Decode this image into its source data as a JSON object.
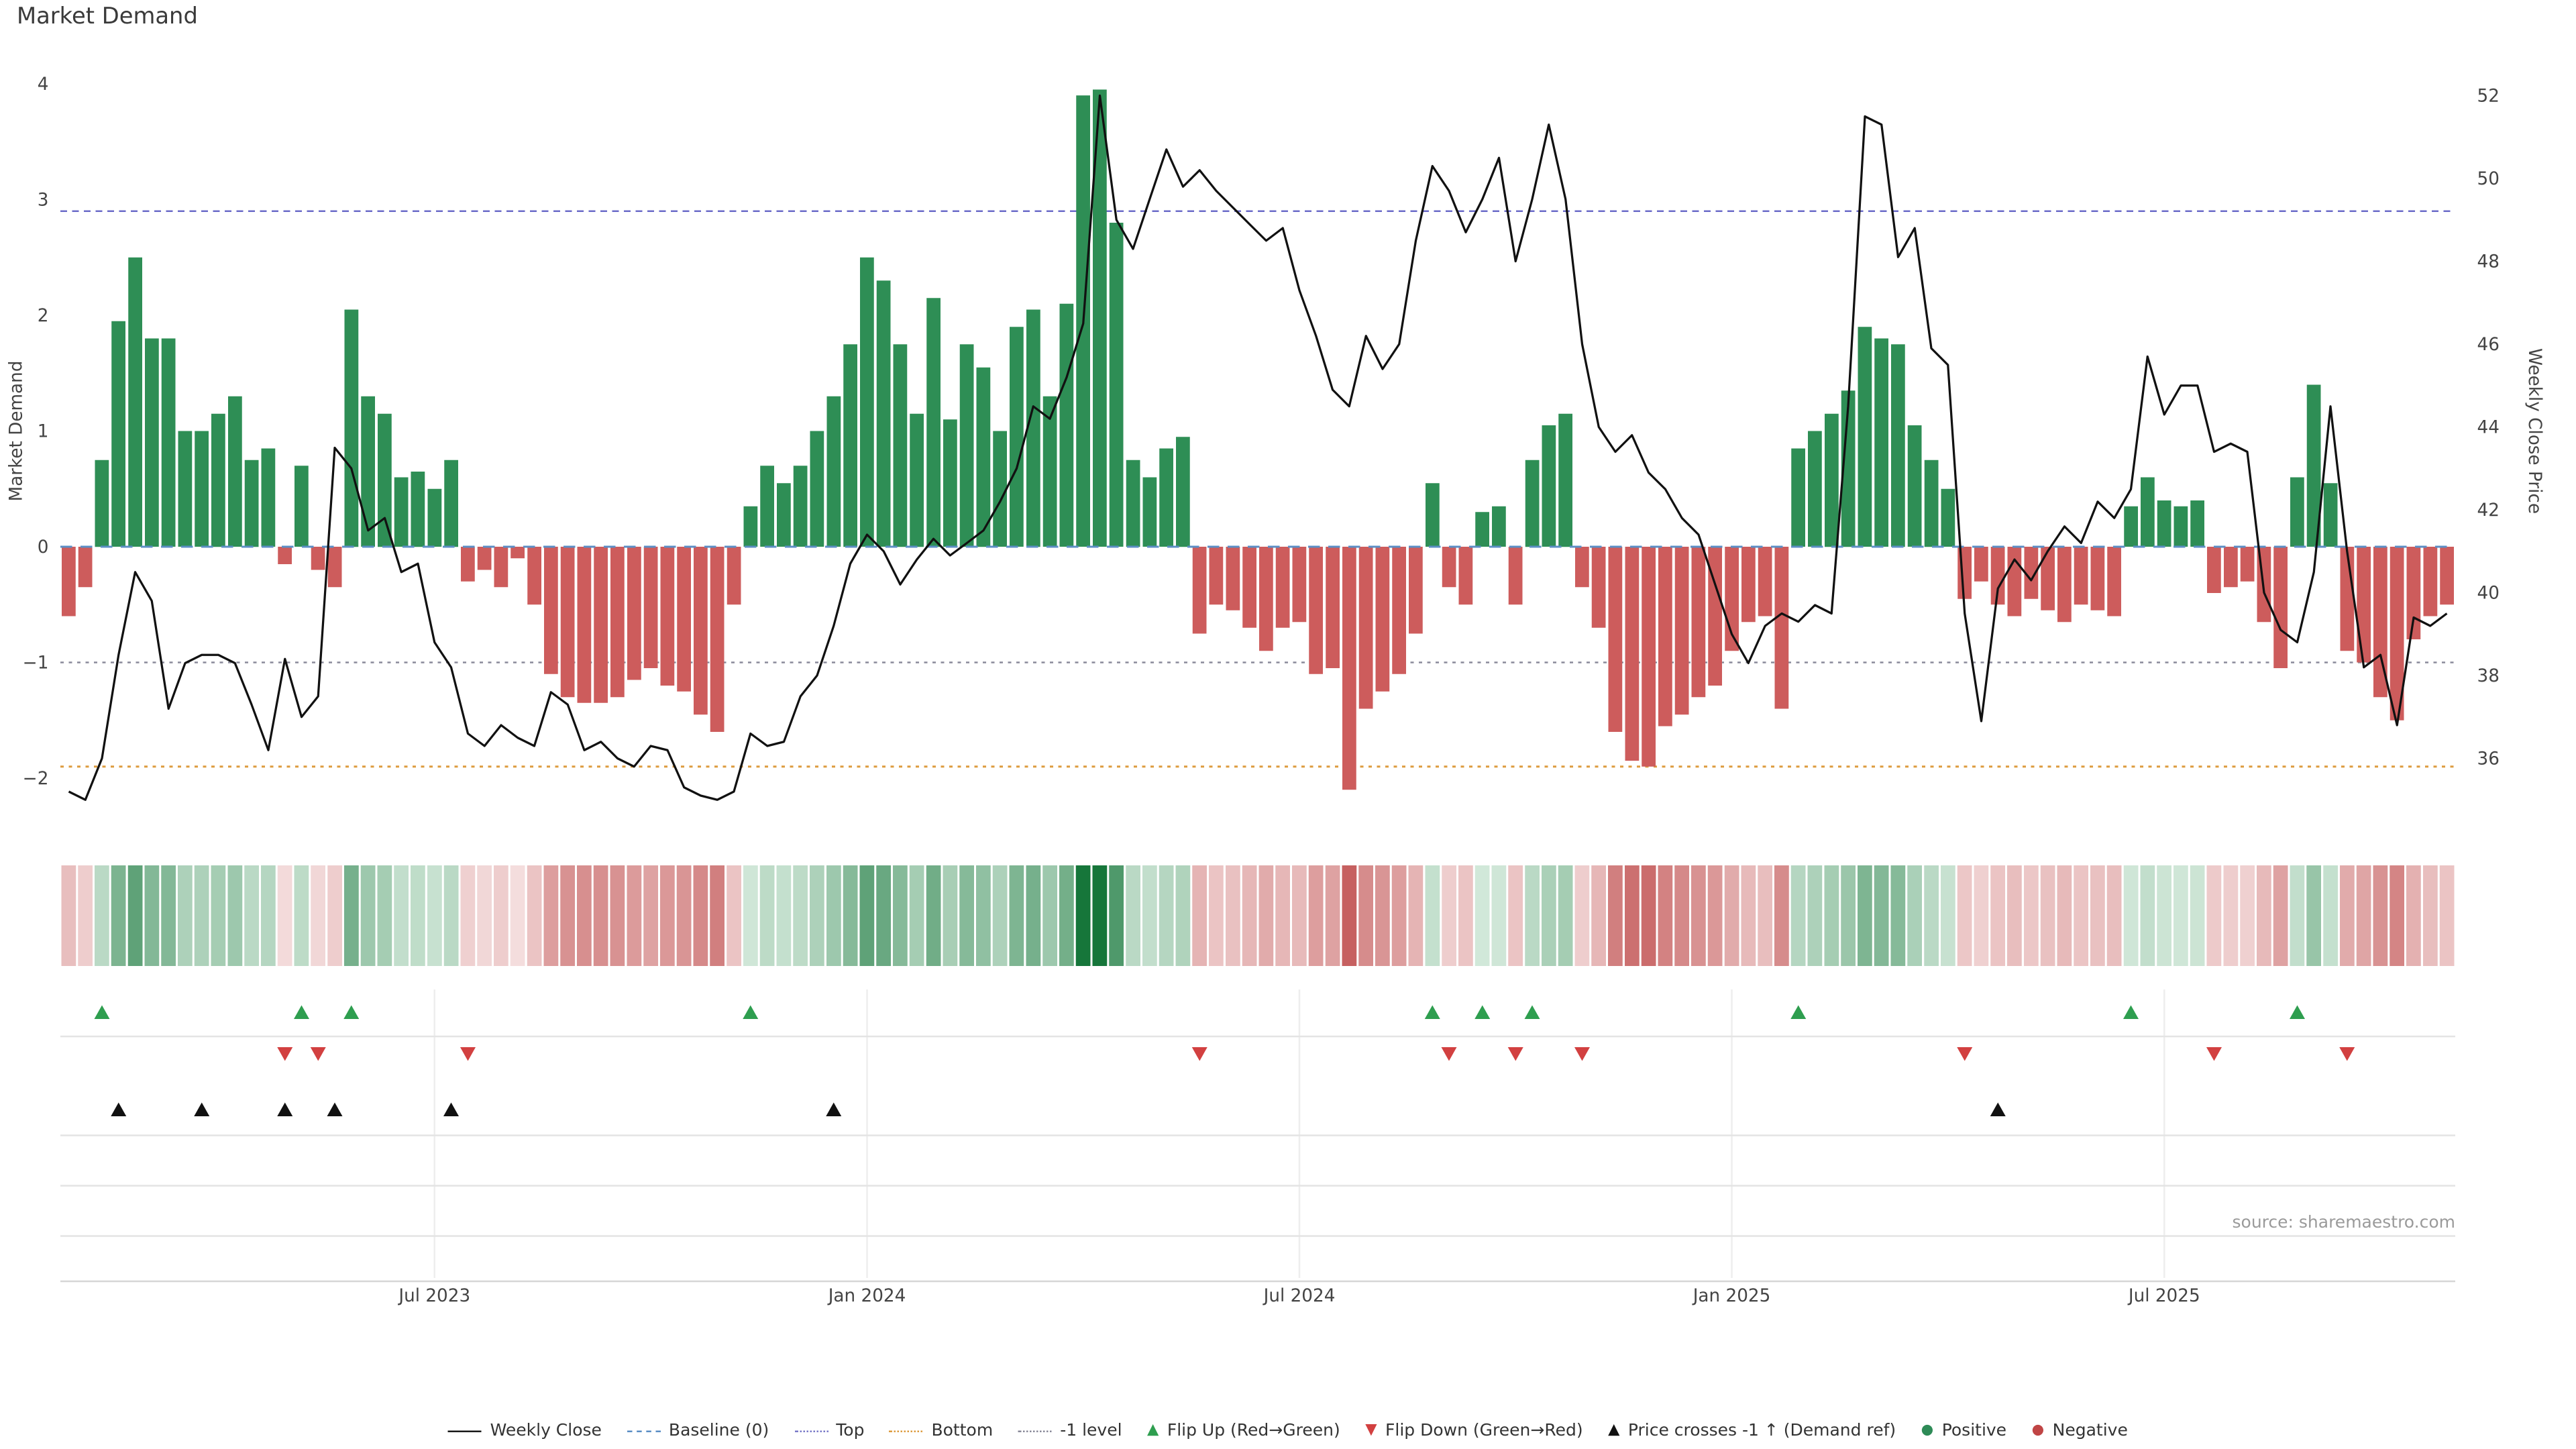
{
  "page": {
    "title": "Market Demand",
    "source": "source: sharemaestro.com"
  },
  "axes": {
    "left_label": "Market Demand",
    "right_label": "Weekly Close Price"
  },
  "colors": {
    "positive": "#2e8e55",
    "negative": "#cd5c5c",
    "price_line": "#111111",
    "baseline_line": "#5b8ec4",
    "top_line": "#6b6bc8",
    "bottom_line": "#dd9c3f",
    "minus1_line": "#8a8a9a",
    "flip_up": "#2e9e4f",
    "flip_down": "#d24040",
    "cross": "#111111",
    "grid": "#e4e4e4",
    "tick_text": "#444444"
  },
  "legend": {
    "items": [
      {
        "label": "Weekly Close",
        "swatch": "line",
        "color": "#1a1a1a"
      },
      {
        "label": "Baseline (0)",
        "swatch": "dash",
        "color": "#5b8ec4"
      },
      {
        "label": "Top",
        "swatch": "dot",
        "color": "#7a7ac8"
      },
      {
        "label": "Bottom",
        "swatch": "dot",
        "color": "#dd9c3f"
      },
      {
        "label": "-1 level",
        "swatch": "dot",
        "color": "#8a8a9a"
      },
      {
        "label": "Flip Up (Red→Green)",
        "swatch": "tri-up",
        "color": "#2e9e4f"
      },
      {
        "label": "Flip Down (Green→Red)",
        "swatch": "tri-down",
        "color": "#d24040"
      },
      {
        "label": "Price crosses -1 ↑ (Demand ref)",
        "swatch": "tri-up",
        "color": "#111111"
      },
      {
        "label": "Positive",
        "swatch": "dot-large",
        "color": "#2e8b57"
      },
      {
        "label": "Negative",
        "swatch": "dot-large",
        "color": "#c04545"
      }
    ]
  },
  "chart_data": {
    "type": "bar+line",
    "title": "Market Demand",
    "n_weeks": 144,
    "frequency": "weekly",
    "grid": false,
    "legend_position": "bottom-center",
    "demand_axis": {
      "label": "Market Demand",
      "ticks": [
        -2,
        -1,
        0,
        1,
        2,
        3,
        4
      ],
      "range": [
        -2.4,
        4.15
      ]
    },
    "price_axis": {
      "label": "Weekly Close Price",
      "ticks": [
        36,
        38,
        40,
        42,
        44,
        46,
        48,
        50,
        52
      ],
      "range": [
        34.8,
        52.4
      ]
    },
    "x_ticks": {
      "labels": [
        "Jul 2023",
        "Jan 2024",
        "Jul 2024",
        "Jan 2025",
        "Jul 2025"
      ],
      "weeks": [
        22,
        48,
        74,
        100,
        126
      ]
    },
    "reference_lines": {
      "baseline": 0,
      "top": 2.9,
      "bottom": -1.9,
      "minus1": -1
    },
    "series": [
      {
        "name": "Market Demand",
        "type": "bar",
        "values": [
          -0.6,
          -0.35,
          0.75,
          1.95,
          2.5,
          1.8,
          1.8,
          1.0,
          1.0,
          1.15,
          1.3,
          0.75,
          0.85,
          -0.15,
          0.7,
          -0.2,
          -0.35,
          2.05,
          1.3,
          1.15,
          0.6,
          0.65,
          0.5,
          0.75,
          -0.3,
          -0.2,
          -0.35,
          -0.1,
          -0.5,
          -1.1,
          -1.3,
          -1.35,
          -1.35,
          -1.3,
          -1.15,
          -1.05,
          -1.2,
          -1.25,
          -1.45,
          -1.6,
          -0.5,
          0.35,
          0.7,
          0.55,
          0.7,
          1.0,
          1.3,
          1.75,
          2.5,
          2.3,
          1.75,
          1.15,
          2.15,
          1.1,
          1.75,
          1.55,
          1.0,
          1.9,
          2.05,
          1.3,
          2.1,
          3.9,
          3.95,
          2.8,
          0.75,
          0.6,
          0.85,
          0.95,
          -0.75,
          -0.5,
          -0.55,
          -0.7,
          -0.9,
          -0.7,
          -0.65,
          -1.1,
          -1.05,
          -2.1,
          -1.4,
          -1.25,
          -1.1,
          -0.75,
          0.55,
          -0.35,
          -0.5,
          0.3,
          0.35,
          -0.5,
          0.75,
          1.05,
          1.15,
          -0.35,
          -0.7,
          -1.6,
          -1.85,
          -1.9,
          -1.55,
          -1.45,
          -1.3,
          -1.2,
          -0.9,
          -0.65,
          -0.6,
          -1.4,
          0.85,
          1.0,
          1.15,
          1.35,
          1.9,
          1.8,
          1.75,
          1.05,
          0.75,
          0.5,
          -0.45,
          -0.3,
          -0.5,
          -0.6,
          -0.45,
          -0.55,
          -0.65,
          -0.5,
          -0.55,
          -0.6,
          0.35,
          0.6,
          0.4,
          0.35,
          0.4,
          -0.4,
          -0.35,
          -0.3,
          -0.65,
          -1.05,
          0.6,
          1.4,
          0.55,
          -0.9,
          -1.0,
          -1.3,
          -1.5,
          -0.8,
          -0.6,
          -0.5
        ]
      },
      {
        "name": "Weekly Close",
        "type": "line",
        "values": [
          35.2,
          35.0,
          36.0,
          38.5,
          40.5,
          39.8,
          37.2,
          38.3,
          38.5,
          38.5,
          38.3,
          37.3,
          36.2,
          38.4,
          37.0,
          37.5,
          43.5,
          43.0,
          41.5,
          41.8,
          40.5,
          40.7,
          38.8,
          38.2,
          36.6,
          36.3,
          36.8,
          36.5,
          36.3,
          37.6,
          37.3,
          36.2,
          36.4,
          36.0,
          35.8,
          36.3,
          36.2,
          35.3,
          35.1,
          35.0,
          35.2,
          36.6,
          36.3,
          36.4,
          37.5,
          38.0,
          39.2,
          40.7,
          41.4,
          41.0,
          40.2,
          40.8,
          41.3,
          40.9,
          41.2,
          41.5,
          42.2,
          43.0,
          44.5,
          44.2,
          45.2,
          46.5,
          52.0,
          49.0,
          48.3,
          49.5,
          50.7,
          49.8,
          50.2,
          49.7,
          49.3,
          48.9,
          48.5,
          48.8,
          47.3,
          46.2,
          44.9,
          44.5,
          46.2,
          45.4,
          46.0,
          48.5,
          50.3,
          49.7,
          48.7,
          49.5,
          50.5,
          48.0,
          49.5,
          51.3,
          49.5,
          46.0,
          44.0,
          43.4,
          43.8,
          42.9,
          42.5,
          41.8,
          41.4,
          40.2,
          39.0,
          38.3,
          39.2,
          39.5,
          39.3,
          39.7,
          39.5,
          44.5,
          51.5,
          51.3,
          48.1,
          48.8,
          45.9,
          45.5,
          39.5,
          36.9,
          40.1,
          40.8,
          40.3,
          41.0,
          41.6,
          41.2,
          42.2,
          41.8,
          42.5,
          45.7,
          44.3,
          45.0,
          45.0,
          43.4,
          43.6,
          43.4,
          40.0,
          39.1,
          38.8,
          40.5,
          44.5,
          41.0,
          38.2,
          38.5,
          36.8,
          39.4,
          39.2,
          39.5
        ]
      }
    ],
    "flip_markers": "derived: flip-up where demand turns positive, flip-down where demand turns negative",
    "cross_marker_weeks": [
      3,
      8,
      13,
      16,
      23,
      46,
      116
    ],
    "heatmap_strip": "per-week cell shaded by demand sign and magnitude (green positive, red negative)"
  }
}
